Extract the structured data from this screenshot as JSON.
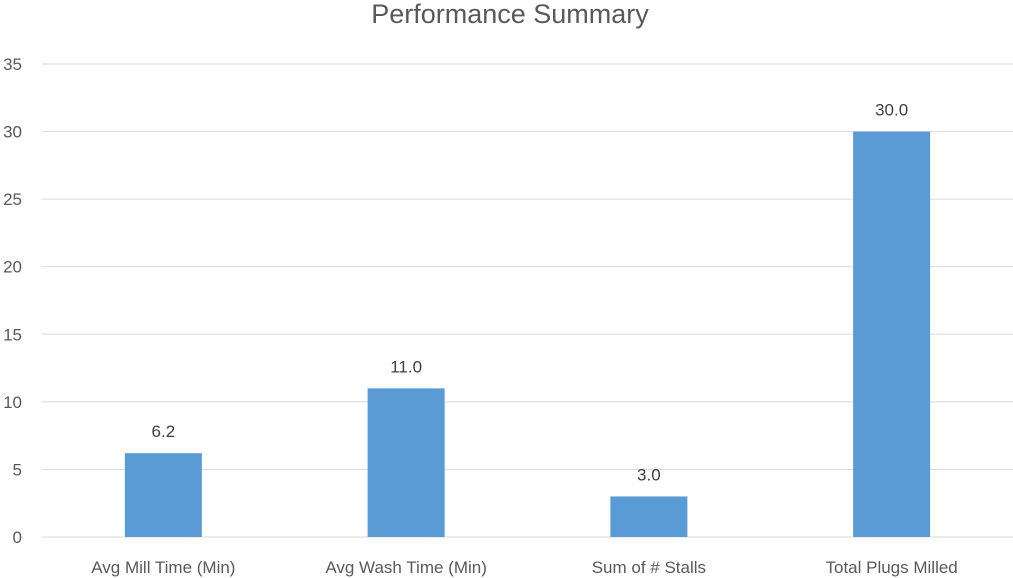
{
  "chart_data": {
    "type": "bar",
    "title": "Performance Summary",
    "xlabel": "",
    "ylabel": "",
    "categories": [
      "Avg Mill Time (Min)",
      "Avg Wash Time (Min)",
      "Sum of # Stalls",
      "Total Plugs Milled"
    ],
    "values": [
      6.2,
      11.0,
      3.0,
      30.0
    ],
    "data_labels": [
      "6.2",
      "11.0",
      "3.0",
      "30.0"
    ],
    "ylim": [
      0,
      35
    ],
    "yticks": [
      0,
      5,
      10,
      15,
      20,
      25,
      30,
      35
    ],
    "grid": true,
    "legend": "none",
    "bar_color": "#5b9bd5"
  }
}
